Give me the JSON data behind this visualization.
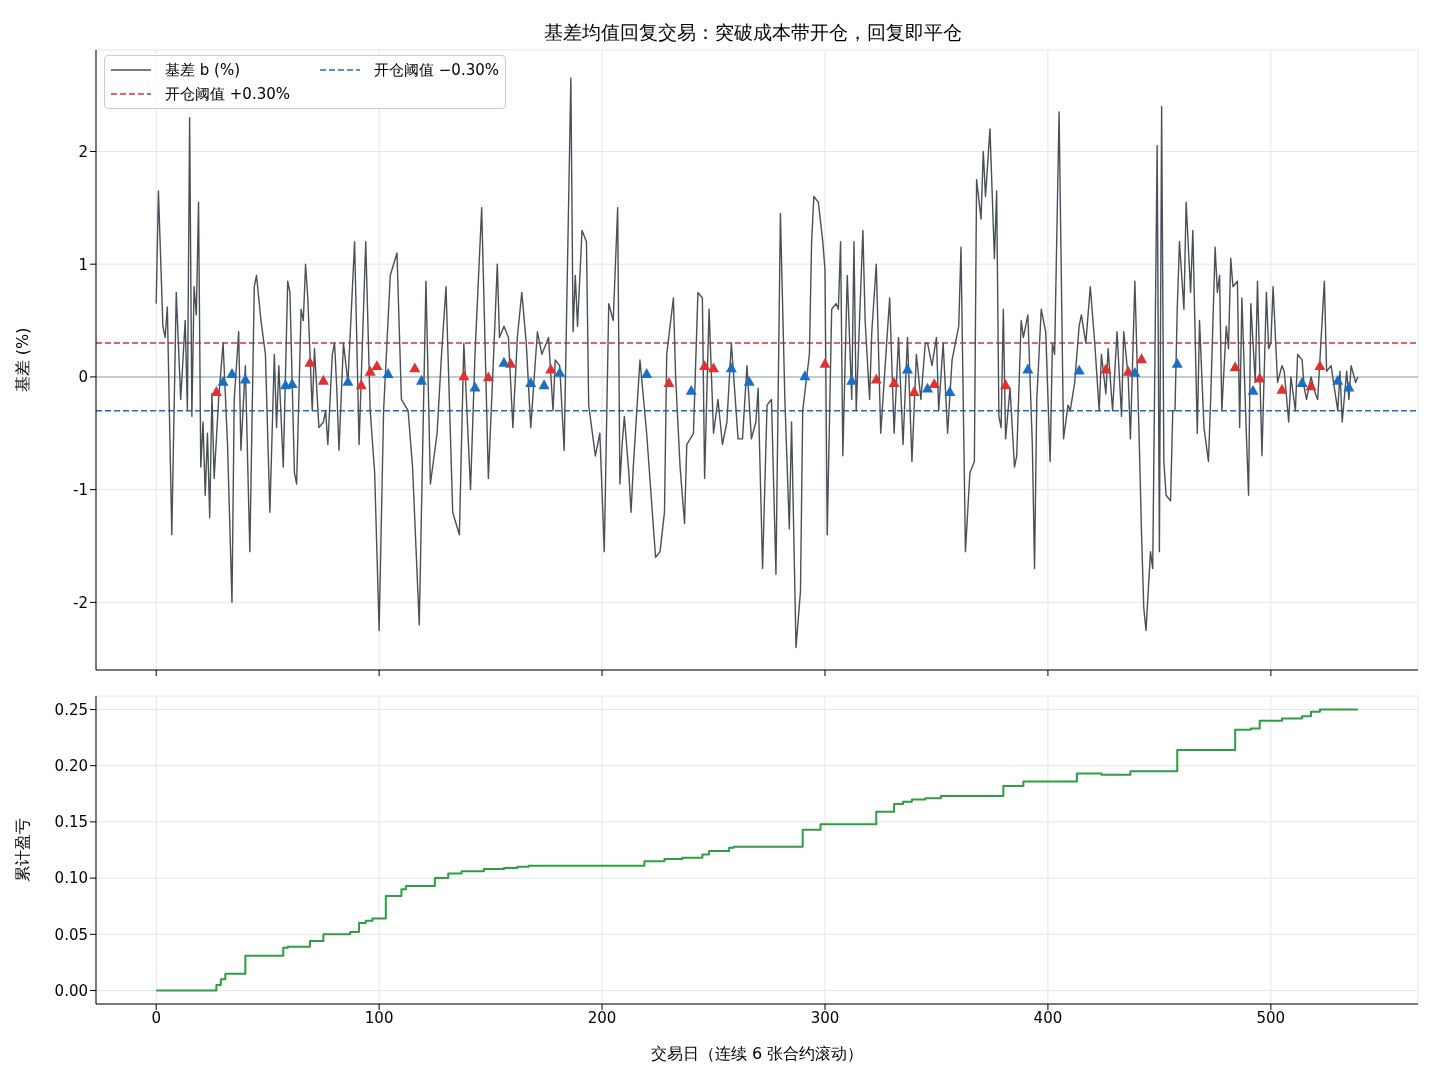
{
  "chart_data": [
    {
      "type": "line",
      "title": "基差均值回复交易：突破成本带开仓，回复即平仓",
      "ylabel": "基差 (%)",
      "xlim": [
        -27,
        566
      ],
      "xticks": [
        0,
        100,
        200,
        300,
        400,
        500
      ],
      "ylim": [
        -2.6,
        2.9
      ],
      "yticks": [
        -2,
        -1,
        0,
        1,
        2
      ],
      "tick_labels": "y",
      "grid": true,
      "legend": "top left",
      "series": [
        {
          "name": "基差 b (%)",
          "color": "#4a5058",
          "marker": "none",
          "line_style": "solid",
          "x": [
            0,
            1,
            3,
            4,
            5,
            7,
            9,
            11,
            13,
            14,
            15,
            16,
            17,
            18,
            19,
            20,
            21,
            22,
            23,
            24,
            25,
            26,
            28,
            30,
            32,
            34,
            35,
            37,
            38,
            40,
            42,
            44,
            45,
            47,
            49,
            51,
            53,
            54,
            55,
            57,
            59,
            60,
            62,
            63,
            65,
            66,
            67,
            68,
            69,
            70,
            71,
            73,
            75,
            76,
            77,
            79,
            80,
            81,
            82,
            84,
            86,
            89,
            91,
            94,
            96,
            98,
            100,
            102,
            105,
            108,
            110,
            113,
            115,
            118,
            121,
            123,
            126,
            128,
            130,
            133,
            136,
            138,
            141,
            143,
            146,
            149,
            152,
            153,
            154,
            156,
            158,
            160,
            162,
            164,
            166,
            168,
            171,
            173,
            176,
            178,
            179,
            181,
            183,
            186,
            187,
            188,
            189,
            191,
            193,
            194,
            197,
            199,
            201,
            203,
            205,
            207,
            208,
            209,
            210,
            212,
            213,
            214,
            217,
            220,
            222,
            224,
            226,
            228,
            229,
            232,
            233,
            235,
            237,
            238,
            241,
            243,
            245,
            246,
            248,
            250,
            252,
            254,
            256,
            258,
            261,
            263,
            265,
            267,
            269,
            270,
            272,
            274,
            276,
            278,
            280,
            282,
            284,
            285,
            287,
            289,
            290,
            293,
            294,
            295,
            297,
            299,
            300,
            301,
            303,
            305,
            306,
            307,
            308,
            310,
            312,
            313,
            314,
            317,
            318,
            320,
            321,
            323,
            325,
            327,
            329,
            331,
            333,
            335,
            337,
            339,
            341,
            343,
            345,
            346,
            348,
            350,
            351,
            353,
            355,
            357,
            360,
            361,
            363,
            365,
            367,
            368,
            370,
            371,
            372,
            374,
            376,
            377,
            378,
            379,
            380,
            381,
            383,
            385,
            386,
            388,
            389,
            391,
            393,
            394,
            395,
            397,
            399,
            401,
            402,
            403,
            405,
            407,
            409,
            410,
            412,
            414,
            415,
            417,
            419,
            421,
            423,
            424,
            426,
            427,
            429,
            431,
            433,
            434,
            436,
            437,
            439,
            441,
            442,
            443,
            444,
            446,
            447,
            449,
            450,
            451,
            452,
            453,
            455,
            456,
            457,
            458,
            459,
            461,
            462,
            464,
            465,
            467,
            468,
            470,
            472,
            473,
            475,
            476,
            477,
            478,
            480,
            481,
            482,
            483,
            485,
            486,
            487,
            489,
            490,
            491,
            493,
            494,
            496,
            498,
            499,
            500,
            501,
            503,
            505,
            506,
            508,
            509,
            511,
            512,
            514,
            515,
            516,
            518,
            520,
            521,
            524,
            525,
            527,
            530,
            531,
            532,
            534,
            535,
            536,
            538,
            539
          ],
          "values": [
            0.65,
            1.65,
            0.45,
            0.35,
            0.62,
            -1.4,
            0.75,
            -0.2,
            0.5,
            -0.3,
            2.3,
            -0.35,
            0.8,
            0.55,
            1.55,
            -0.8,
            -0.4,
            -1.05,
            -0.5,
            -1.25,
            -0.15,
            -0.9,
            -0.2,
            0.3,
            -0.6,
            -2.0,
            -0.2,
            0.4,
            -0.65,
            0.1,
            -1.55,
            0.8,
            0.9,
            0.5,
            0.2,
            -1.2,
            0.2,
            -0.45,
            0.1,
            -0.8,
            0.85,
            0.75,
            -0.85,
            -0.95,
            0.6,
            0.5,
            1.0,
            0.7,
            0.2,
            -0.3,
            0.25,
            -0.45,
            -0.4,
            -0.3,
            -0.6,
            0.2,
            0.3,
            -0.1,
            -0.65,
            0.3,
            -0.05,
            1.2,
            -0.6,
            1.2,
            -0.3,
            -0.85,
            -2.25,
            -0.3,
            0.9,
            1.1,
            -0.2,
            -0.3,
            -0.8,
            -2.2,
            0.85,
            -0.95,
            -0.5,
            0.2,
            0.8,
            -1.2,
            -1.4,
            0.3,
            -1.0,
            0.2,
            1.5,
            -0.9,
            0.5,
            1.0,
            0.35,
            0.45,
            0.35,
            -0.45,
            0.35,
            0.75,
            0.3,
            -0.45,
            0.4,
            0.2,
            0.35,
            -0.3,
            0.15,
            0.1,
            -0.65,
            2.65,
            0.4,
            0.9,
            0.45,
            1.3,
            1.2,
            -0.25,
            -0.7,
            -0.5,
            -1.55,
            0.65,
            0.5,
            1.5,
            -0.95,
            -0.6,
            -0.35,
            -0.85,
            -1.2,
            -0.8,
            0.15,
            -0.5,
            -1.05,
            -1.6,
            -1.55,
            -1.2,
            0.2,
            0.7,
            0.0,
            -0.8,
            -1.3,
            -0.6,
            -0.5,
            0.75,
            0.7,
            -0.9,
            0.6,
            -0.5,
            -0.2,
            -0.6,
            -0.4,
            0.3,
            -0.55,
            -0.55,
            0.1,
            -0.55,
            -0.4,
            -0.1,
            -1.7,
            -0.25,
            -0.2,
            -1.75,
            1.45,
            -0.2,
            -1.35,
            -0.4,
            -2.4,
            -1.9,
            -0.3,
            0.2,
            1.2,
            1.6,
            1.55,
            1.2,
            0.95,
            -1.4,
            0.6,
            0.65,
            0.6,
            1.2,
            -0.7,
            0.9,
            -0.2,
            1.2,
            -0.3,
            1.3,
            0.5,
            -0.2,
            0.4,
            1.0,
            -0.5,
            0.1,
            0.7,
            -0.5,
            0.35,
            -0.6,
            0.35,
            -0.75,
            0.2,
            -0.2,
            0.3,
            0.3,
            0.1,
            0.35,
            -0.3,
            0.3,
            -0.5,
            0.15,
            0.45,
            1.15,
            -1.55,
            -0.85,
            -0.75,
            1.75,
            1.4,
            2.0,
            1.6,
            2.2,
            1.05,
            1.65,
            -0.35,
            -0.45,
            0.6,
            -0.55,
            -0.1,
            -0.8,
            -0.7,
            0.5,
            0.35,
            0.55,
            -0.6,
            -1.7,
            -0.2,
            0.6,
            0.4,
            -0.75,
            0.3,
            0.2,
            2.35,
            -0.55,
            -0.25,
            -0.3,
            -0.05,
            0.45,
            0.55,
            0.3,
            0.8,
            0.3,
            -0.3,
            0.2,
            -0.15,
            0.25,
            -0.3,
            0.4,
            -0.35,
            0.4,
            0.0,
            -0.55,
            0.85,
            -0.6,
            -1.4,
            -2.05,
            -2.25,
            -1.55,
            -1.7,
            2.05,
            -1.55,
            2.4,
            -0.75,
            -1.05,
            -1.1,
            -0.3,
            -0.3,
            0.6,
            1.2,
            0.6,
            1.55,
            0.75,
            1.3,
            -0.5,
            0.5,
            -0.45,
            -0.75,
            -0.2,
            1.15,
            0.75,
            0.9,
            -0.3,
            0.45,
            0.25,
            1.05,
            0.8,
            0.85,
            -0.45,
            0.7,
            -0.5,
            -1.05,
            0.65,
            -0.05,
            0.85,
            -0.7,
            0.75,
            0.25,
            0.3,
            0.8,
            -0.05,
            0.1,
            0.05,
            -0.4,
            0.0,
            -0.3,
            0.2,
            0.15,
            -0.1,
            -0.2,
            0.0,
            -0.15,
            -0.2,
            0.85,
            0.05,
            0.1,
            -0.3,
            0.05,
            -0.4,
            0.05,
            -0.2,
            0.1,
            -0.05,
            0.0
          ]
        },
        {
          "type": "scatter",
          "color": "#e03131",
          "marker": "triangle",
          "x": [
            27,
            69,
            75,
            92,
            96,
            99,
            116,
            138,
            149,
            159,
            177,
            230,
            246,
            250,
            300,
            323,
            331,
            340,
            349,
            381,
            426,
            436,
            442,
            484,
            495,
            505,
            518,
            522
          ],
          "values": [
            -0.13,
            0.13,
            -0.03,
            -0.07,
            0.05,
            0.1,
            0.08,
            0.01,
            0.0,
            0.12,
            0.07,
            -0.05,
            0.1,
            0.08,
            0.12,
            -0.02,
            -0.05,
            -0.13,
            -0.06,
            -0.07,
            0.07,
            0.05,
            0.16,
            0.09,
            -0.01,
            -0.11,
            -0.08,
            0.1
          ]
        },
        {
          "type": "scatter",
          "color": "#1a6fc4",
          "marker": "triangle",
          "x": [
            30,
            34,
            40,
            58,
            61,
            86,
            104,
            119,
            143,
            156,
            168,
            174,
            181,
            220,
            240,
            258,
            266,
            291,
            312,
            337,
            346,
            356,
            391,
            414,
            439,
            458,
            492,
            514,
            530,
            535
          ],
          "values": [
            -0.04,
            0.03,
            -0.02,
            -0.07,
            -0.06,
            -0.04,
            0.03,
            -0.03,
            -0.09,
            0.13,
            -0.05,
            -0.07,
            0.04,
            0.03,
            -0.12,
            0.08,
            -0.04,
            0.01,
            -0.03,
            0.07,
            -0.1,
            -0.13,
            0.07,
            0.06,
            0.04,
            0.12,
            -0.12,
            -0.05,
            -0.03,
            -0.09
          ]
        }
      ],
      "ref_lines": [
        {
          "axis": "y",
          "value": 0.3,
          "label": "开仓阈值 +0.30%",
          "color": "#e03131",
          "line_style": "dashed"
        },
        {
          "axis": "y",
          "value": -0.3,
          "label": "开仓阈值 −0.30%",
          "color": "#1a6fc4",
          "line_style": "dashed"
        },
        {
          "axis": "y",
          "value": 0,
          "color": "#b0bec5",
          "line_style": "solid"
        }
      ]
    },
    {
      "type": "step",
      "xlabel": "交易日（连续 6 张合约滚动）",
      "ylabel": "累计盈亏",
      "xlim": [
        -27,
        566
      ],
      "xticks": [
        0,
        100,
        200,
        300,
        400,
        500
      ],
      "ylim": [
        -0.012,
        0.262
      ],
      "yticks": [
        {
          "value": 0,
          "label": "0.00"
        },
        {
          "value": 0.05,
          "label": "0.05"
        },
        {
          "value": 0.1,
          "label": "0.10"
        },
        {
          "value": 0.15,
          "label": "0.15"
        },
        {
          "value": 0.2,
          "label": "0.20"
        },
        {
          "value": 0.25,
          "label": "0.25"
        }
      ],
      "grid": true,
      "series": [
        {
          "color": "#2e9e44",
          "x": [
            0,
            27,
            29,
            31,
            40,
            57,
            59,
            69,
            75,
            87,
            91,
            94,
            97,
            103,
            110,
            112,
            125,
            131,
            137,
            147,
            156,
            162,
            167,
            219,
            228,
            236,
            245,
            248,
            257,
            259,
            290,
            298,
            323,
            331,
            335,
            339,
            345,
            352,
            380,
            389,
            413,
            424,
            437,
            458,
            484,
            491,
            495,
            505,
            514,
            518,
            522,
            539
          ],
          "values": [
            0,
            0.005,
            0.01,
            0.015,
            0.031,
            0.038,
            0.039,
            0.044,
            0.05,
            0.052,
            0.06,
            0.062,
            0.064,
            0.084,
            0.09,
            0.093,
            0.1,
            0.104,
            0.106,
            0.108,
            0.109,
            0.11,
            0.111,
            0.115,
            0.117,
            0.118,
            0.121,
            0.124,
            0.127,
            0.128,
            0.143,
            0.148,
            0.159,
            0.166,
            0.168,
            0.17,
            0.171,
            0.173,
            0.182,
            0.186,
            0.193,
            0.192,
            0.195,
            0.214,
            0.232,
            0.233,
            0.24,
            0.242,
            0.244,
            0.248,
            0.25,
            0.25
          ]
        }
      ]
    }
  ]
}
